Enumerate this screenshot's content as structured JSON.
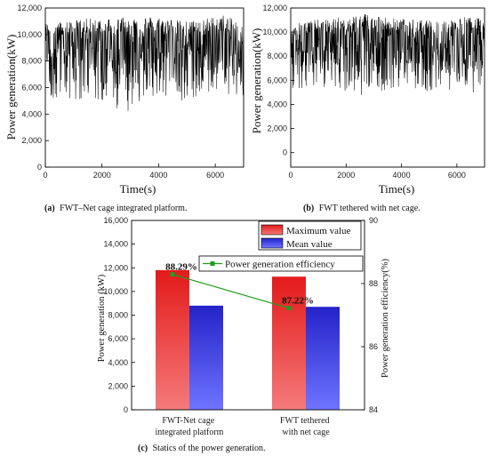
{
  "chart_data": [
    {
      "type": "line",
      "panel": "a",
      "caption_label": "(a)",
      "caption_text": "FWT–Net cage integrated platform.",
      "xlabel": "Time(s)",
      "ylabel": "Power generation(kW)",
      "xlim": [
        0,
        7000
      ],
      "ylim": [
        0,
        12000
      ],
      "xticks": [
        "0",
        "2000",
        "4000",
        "6000"
      ],
      "yticks": [
        "0",
        "2,000",
        "4,000",
        "6,000",
        "8,000",
        "10,000",
        "12,000"
      ],
      "series": [
        {
          "color": "#000000",
          "x": [
            0,
            700,
            1400,
            2100,
            2800,
            3500,
            4200,
            4900,
            5600,
            6300,
            7000
          ],
          "y_max": [
            10900,
            11000,
            11200,
            11300,
            11400,
            11400,
            11300,
            11000,
            11200,
            11500,
            10800
          ],
          "y_min": [
            5000,
            5300,
            4700,
            5000,
            4000,
            5200,
            4700,
            4800,
            5100,
            5300,
            5200
          ],
          "y_mean": [
            8800,
            8800,
            8900,
            8800,
            8700,
            8800,
            8800,
            8900,
            8800,
            8800,
            8800
          ]
        }
      ]
    },
    {
      "type": "line",
      "panel": "b",
      "caption_label": "(b)",
      "caption_text": "FWT tethered with net cage.",
      "xlabel": "Time(s)",
      "ylabel": "Power generation(kW)",
      "xlim": [
        0,
        7000
      ],
      "ylim": [
        -1200,
        12000
      ],
      "xticks": [
        "0",
        "2000",
        "4000",
        "6000"
      ],
      "yticks": [
        "0",
        "2,000",
        "4,000",
        "6,000",
        "8,000",
        "10,000",
        "12,000"
      ],
      "series": [
        {
          "color": "#000000",
          "x": [
            0,
            700,
            1400,
            2100,
            2800,
            3500,
            4200,
            4900,
            5600,
            6300,
            7000
          ],
          "y_max": [
            10800,
            11000,
            11100,
            11300,
            11700,
            11200,
            11100,
            11000,
            11000,
            11300,
            11100
          ],
          "y_min": [
            5000,
            5300,
            5400,
            4900,
            4700,
            5300,
            5400,
            5100,
            5200,
            5000,
            4700
          ],
          "y_mean": [
            8700,
            8700,
            8800,
            8700,
            8600,
            8700,
            8700,
            8700,
            8700,
            8700,
            8700
          ]
        }
      ]
    },
    {
      "type": "bar",
      "panel": "c",
      "caption_label": "(c)",
      "caption_text": "Statics of the power generation.",
      "categories": [
        [
          "FWT-Net cage",
          "integrated platform"
        ],
        [
          "FWT tethered",
          "with net cage"
        ]
      ],
      "ylabel": "Power generation (kW)",
      "ylim": [
        0,
        16000
      ],
      "yticks": [
        "0",
        "2,000",
        "4,000",
        "6,000",
        "8,000",
        "10,000",
        "12,000",
        "14,000",
        "16,000"
      ],
      "y2label": "Power generation efficiency(%)",
      "y2lim": [
        84,
        90
      ],
      "y2ticks": [
        "84",
        "86",
        "88",
        "90"
      ],
      "series": [
        {
          "name": "Maximum value",
          "color": "#d93535",
          "values": [
            11800,
            11250
          ]
        },
        {
          "name": "Mean value",
          "color": "#3a3ad0",
          "values": [
            8800,
            8700
          ]
        }
      ],
      "line_series": {
        "name": "Power generation efficiency",
        "color": "#1e9e1e",
        "axis": "right",
        "values": [
          88.29,
          87.22
        ],
        "labels": [
          "88.29%",
          "87.22%"
        ]
      },
      "legend_position": "top-right"
    }
  ]
}
